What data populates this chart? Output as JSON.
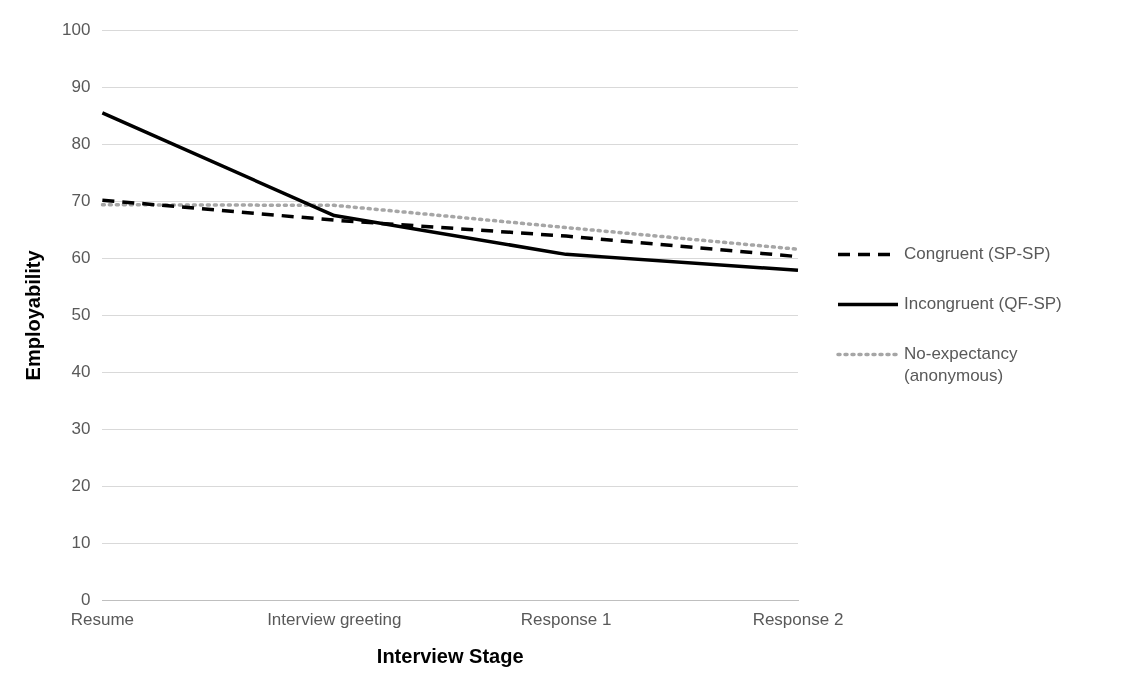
{
  "chart_data": {
    "type": "line",
    "xlabel": "Interview Stage",
    "ylabel": "Employability",
    "categories": [
      "Resume",
      "Interview greeting",
      "Response 1",
      "Response 2"
    ],
    "ylim": [
      0,
      100
    ],
    "yticks": [
      0,
      10,
      20,
      30,
      40,
      50,
      60,
      70,
      80,
      90,
      100
    ],
    "grid": "y",
    "legend": "right",
    "marker": "none",
    "series": [
      {
        "name": "Congruent (SP-SP)",
        "color": "#000000",
        "line_style": "dashed",
        "values": [
          70.2,
          66.7,
          63.9,
          60.3
        ]
      },
      {
        "name": "Incongruent (QF-SP)",
        "color": "#000000",
        "line_style": "solid",
        "values": [
          85.5,
          67.5,
          60.7,
          57.9
        ]
      },
      {
        "name": "No-expectancy (anonymous)",
        "color": "#a6a6a6",
        "line_style": "dotted",
        "values": [
          69.4,
          69.3,
          65.4,
          61.6
        ]
      }
    ]
  }
}
